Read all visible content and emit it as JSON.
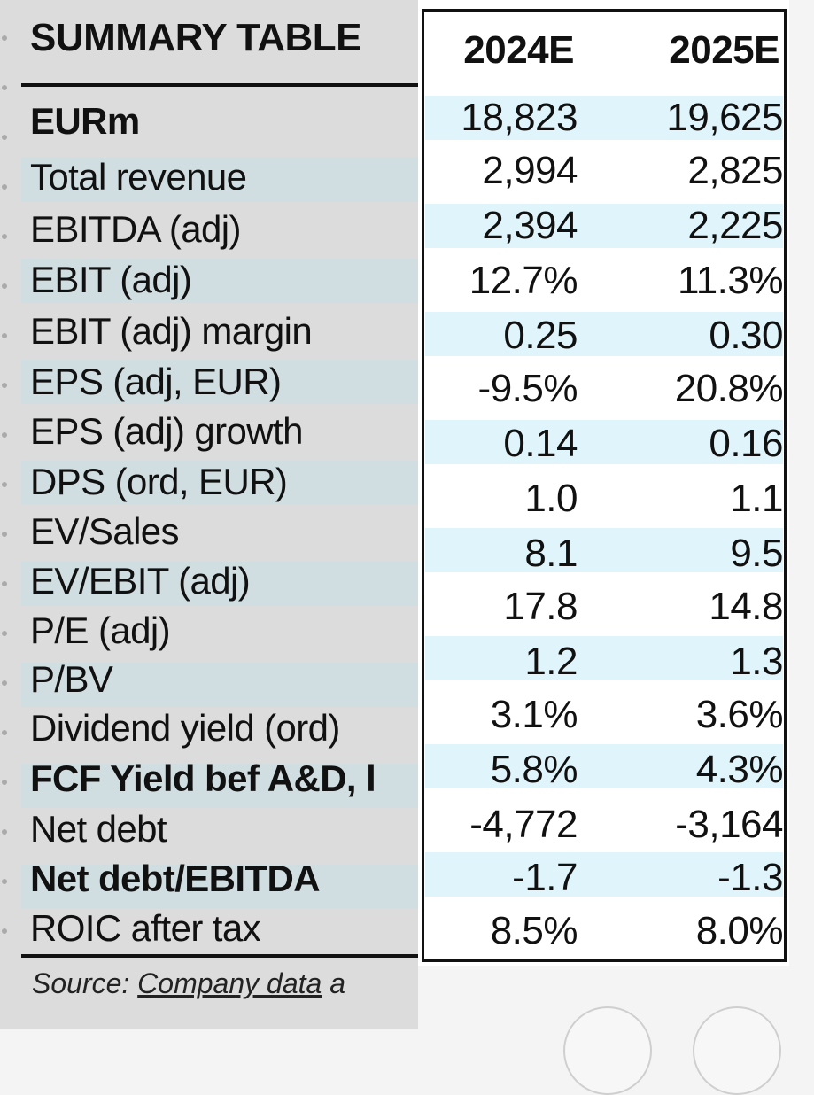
{
  "table": {
    "title": "SUMMARY TABLE",
    "unit_label": "EURm",
    "columns": [
      "2024E",
      "2025E"
    ],
    "rows": [
      {
        "label": "Total revenue",
        "v2024": "18,823",
        "v2025": "19,625"
      },
      {
        "label": "EBITDA (adj)",
        "v2024": "2,994",
        "v2025": "2,825"
      },
      {
        "label": "EBIT (adj)",
        "v2024": "2,394",
        "v2025": "2,225"
      },
      {
        "label": "EBIT (adj) margin",
        "v2024": "12.7%",
        "v2025": "11.3%"
      },
      {
        "label": "EPS (adj, EUR)",
        "v2024": "0.25",
        "v2025": "0.30"
      },
      {
        "label": "EPS (adj) growth",
        "v2024": "-9.5%",
        "v2025": "20.8%"
      },
      {
        "label": "DPS (ord, EUR)",
        "v2024": "0.14",
        "v2025": "0.16"
      },
      {
        "label": "EV/Sales",
        "v2024": "1.0",
        "v2025": "1.1"
      },
      {
        "label": "EV/EBIT (adj)",
        "v2024": "8.1",
        "v2025": "9.5"
      },
      {
        "label": "P/E (adj)",
        "v2024": "17.8",
        "v2025": "14.8"
      },
      {
        "label": "P/BV",
        "v2024": "1.2",
        "v2025": "1.3"
      },
      {
        "label": "Dividend yield (ord)",
        "v2024": "3.1%",
        "v2025": "3.6%"
      },
      {
        "label": "FCF Yield bef A&D, l",
        "v2024": "5.8%",
        "v2025": "4.3%"
      },
      {
        "label": "Net debt",
        "v2024": "-4,772",
        "v2025": "-3,164"
      },
      {
        "label": "Net debt/EBITDA",
        "v2024": "-1.7",
        "v2025": "-1.3"
      },
      {
        "label": "ROIC after tax",
        "v2024": "8.5%",
        "v2025": "8.0%"
      }
    ],
    "source_prefix": "Source: ",
    "source_link": "Company data",
    "source_suffix": " a"
  },
  "colors": {
    "left_background": "#dcdcdc",
    "stripe": "#cfe3ea",
    "value_band": "#dff5fb",
    "frame": "#111111"
  }
}
